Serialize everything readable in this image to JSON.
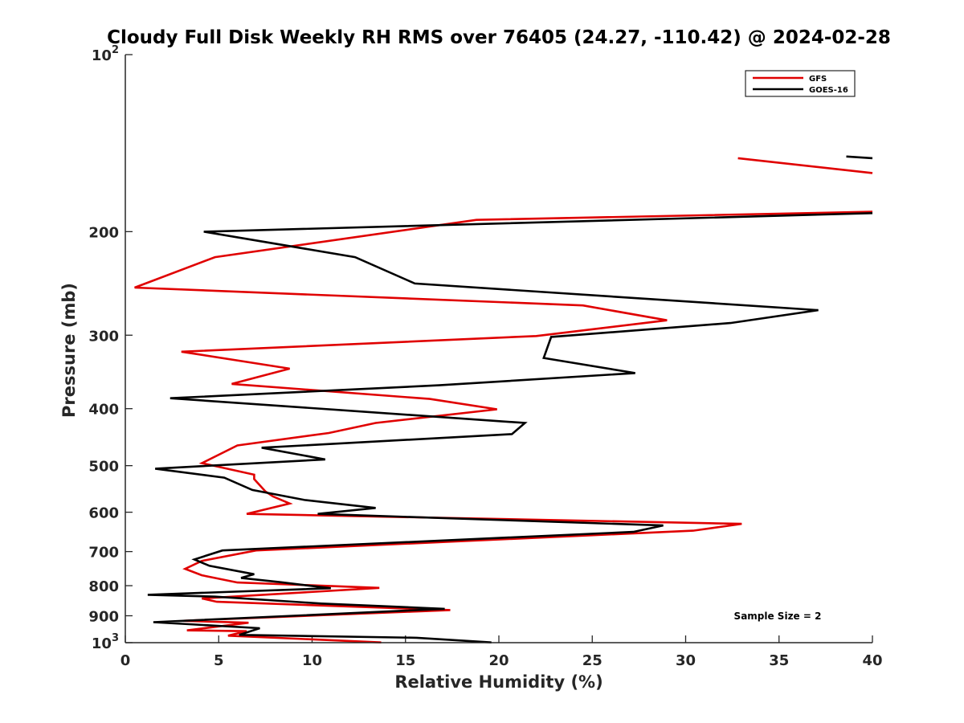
{
  "chart_data": {
    "type": "line",
    "title": "Cloudy Full Disk Weekly RH RMS over 76405 (24.27, -110.42) @ 2024-02-28",
    "xlabel": "Relative Humidity (%)",
    "ylabel": "Pressure (mb)",
    "xlim": [
      0,
      40
    ],
    "ylim": [
      100,
      1000
    ],
    "y_scale": "log",
    "y_reversed": true,
    "x_ticks": [
      "0",
      "5",
      "10",
      "15",
      "20",
      "25",
      "30",
      "35",
      "40"
    ],
    "y_ticks": [
      {
        "value": 100,
        "base": "10",
        "exp": "2"
      },
      {
        "value": 200,
        "label": "200"
      },
      {
        "value": 300,
        "label": "300"
      },
      {
        "value": 400,
        "label": "400"
      },
      {
        "value": 500,
        "label": "500"
      },
      {
        "value": 600,
        "label": "600"
      },
      {
        "value": 700,
        "label": "700"
      },
      {
        "value": 800,
        "label": "800"
      },
      {
        "value": 900,
        "label": "900"
      },
      {
        "value": 1000,
        "base": "10",
        "exp": "3"
      }
    ],
    "legend_position": "top-right",
    "annotation": "Sample Size = 2",
    "series": [
      {
        "name": "GFS",
        "color": "#e00000",
        "segments": [
          [
            [
              32.8,
              150
            ],
            [
              40,
              159
            ]
          ],
          [
            [
              40,
              185
            ],
            [
              18.8,
              191
            ],
            [
              4.8,
              221
            ],
            [
              0.5,
              249
            ],
            [
              24.5,
              267
            ],
            [
              29.0,
              283
            ],
            [
              22.0,
              301
            ],
            [
              3.0,
              320
            ],
            [
              8.8,
              342
            ],
            [
              5.7,
              363
            ],
            [
              16.3,
              385
            ],
            [
              19.9,
              401
            ],
            [
              13.4,
              423
            ],
            [
              10.9,
              440
            ],
            [
              6.0,
              462
            ],
            [
              4.1,
              495
            ],
            [
              6.9,
              518
            ],
            [
              6.9,
              527
            ],
            [
              7.5,
              553
            ],
            [
              7.9,
              564
            ],
            [
              8.8,
              580
            ],
            [
              6.5,
              604
            ],
            [
              33.0,
              628
            ],
            [
              30.4,
              645
            ],
            [
              7.0,
              697
            ],
            [
              4.1,
              726
            ],
            [
              3.2,
              749
            ],
            [
              4.1,
              768
            ],
            [
              6.0,
              790
            ],
            [
              13.6,
              807
            ],
            [
              4.1,
              841
            ],
            [
              4.9,
              852
            ],
            [
              17.4,
              880
            ],
            [
              3.1,
              918
            ],
            [
              6.6,
              925
            ],
            [
              3.3,
              953
            ],
            [
              6.5,
              956
            ],
            [
              5.5,
              973
            ],
            [
              13.7,
              999
            ]
          ]
        ]
      },
      {
        "name": "GOES-16",
        "color": "#000000",
        "segments": [
          [
            [
              38.6,
              149
            ],
            [
              40,
              150
            ]
          ],
          [
            [
              40,
              186
            ],
            [
              4.2,
              200
            ],
            [
              12.3,
              221
            ],
            [
              15.5,
              245
            ],
            [
              37.1,
              272
            ],
            [
              32.4,
              286
            ],
            [
              22.8,
              302
            ],
            [
              22.4,
              328
            ],
            [
              27.3,
              348
            ],
            [
              16.8,
              365
            ],
            [
              2.4,
              384
            ],
            [
              21.4,
              423
            ],
            [
              20.7,
              442
            ],
            [
              7.3,
              466
            ],
            [
              10.7,
              488
            ],
            [
              1.6,
              506
            ],
            [
              5.3,
              524
            ],
            [
              6.8,
              550
            ],
            [
              9.6,
              572
            ],
            [
              13.4,
              590
            ],
            [
              10.3,
              604
            ],
            [
              28.8,
              632
            ],
            [
              27.2,
              648
            ],
            [
              5.2,
              697
            ],
            [
              3.7,
              722
            ],
            [
              4.5,
              740
            ],
            [
              6.9,
              765
            ],
            [
              6.2,
              776
            ],
            [
              8.3,
              789
            ],
            [
              11.0,
              808
            ],
            [
              1.2,
              829
            ],
            [
              4.8,
              835
            ],
            [
              10.5,
              858
            ],
            [
              17.1,
              876
            ],
            [
              1.5,
              923
            ],
            [
              7.2,
              945
            ],
            [
              6.1,
              970
            ],
            [
              15.6,
              981
            ],
            [
              19.6,
              999
            ]
          ]
        ]
      }
    ]
  }
}
